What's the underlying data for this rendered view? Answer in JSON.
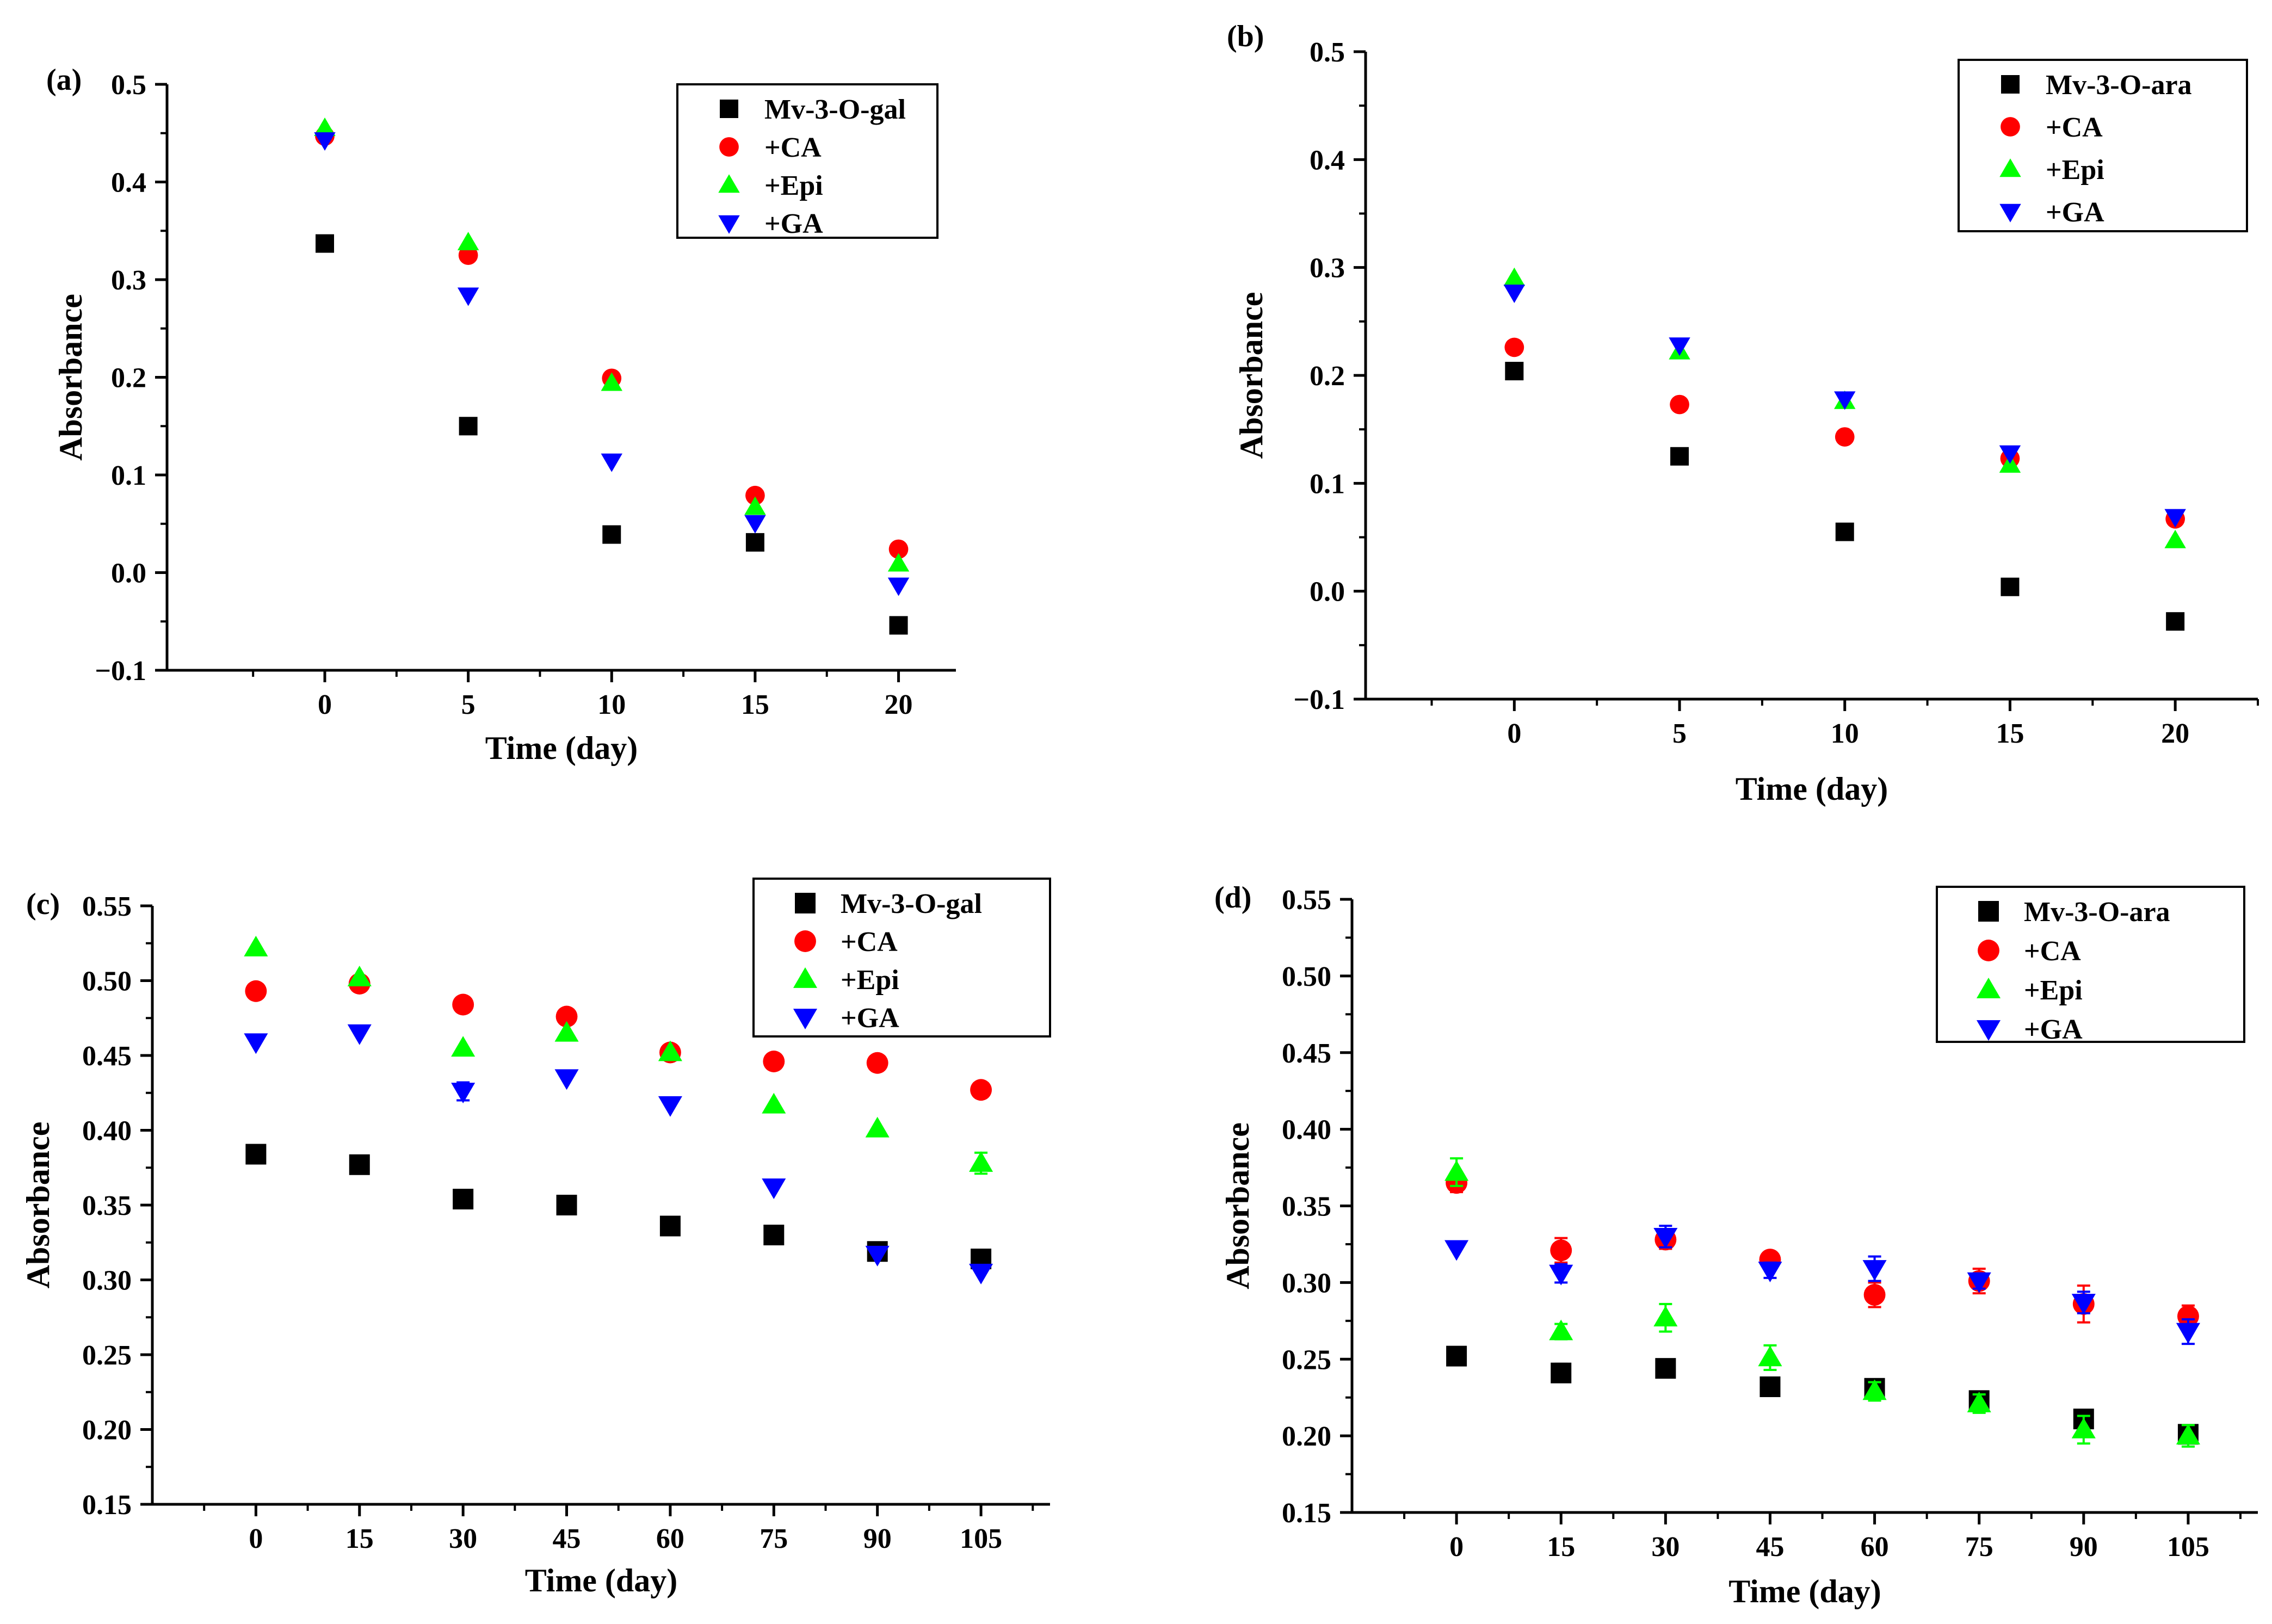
{
  "chart_data": [
    {
      "type": "scatter",
      "panel_label": "(a)",
      "xlabel": "Time (day)",
      "ylabel": "Absorbance",
      "xlim": [
        -5.5,
        22
      ],
      "ylim": [
        -0.1,
        0.5
      ],
      "xticks": [
        0,
        5,
        10,
        15,
        20
      ],
      "yticks": [
        -0.1,
        0.0,
        0.1,
        0.2,
        0.3,
        0.4,
        0.5
      ],
      "ytick_labels": [
        "−0.1",
        "0.0",
        "0.1",
        "0.2",
        "0.3",
        "0.4",
        "0.5"
      ],
      "legend_position": "top-right",
      "series": [
        {
          "name": "Mv-3-O-gal",
          "marker": "square",
          "color": "#000000",
          "x": [
            0,
            5,
            10,
            15,
            20
          ],
          "y": [
            0.337,
            0.15,
            0.039,
            0.031,
            -0.054
          ]
        },
        {
          "name": "+CA",
          "marker": "circle",
          "color": "#ff0000",
          "x": [
            0,
            5,
            10,
            15,
            20
          ],
          "y": [
            0.447,
            0.325,
            0.199,
            0.079,
            0.024
          ]
        },
        {
          "name": "+Epi",
          "marker": "triangle-up",
          "color": "#00ff00",
          "x": [
            0,
            5,
            10,
            15,
            20
          ],
          "y": [
            0.455,
            0.338,
            0.194,
            0.067,
            0.009
          ]
        },
        {
          "name": "+GA",
          "marker": "triangle-down",
          "color": "#0000ff",
          "x": [
            0,
            5,
            10,
            15,
            20
          ],
          "y": [
            0.443,
            0.284,
            0.114,
            0.051,
            -0.013
          ]
        }
      ]
    },
    {
      "type": "scatter",
      "panel_label": "(b)",
      "xlabel": "Time (day)",
      "ylabel": "Absorbance",
      "xlim": [
        -4.5,
        22.5
      ],
      "ylim": [
        -0.1,
        0.5
      ],
      "xticks": [
        0,
        5,
        10,
        15,
        20
      ],
      "yticks": [
        -0.1,
        0.0,
        0.1,
        0.2,
        0.3,
        0.4,
        0.5
      ],
      "ytick_labels": [
        "−0.1",
        "0.0",
        "0.1",
        "0.2",
        "0.3",
        "0.4",
        "0.5"
      ],
      "legend_position": "top-right",
      "series": [
        {
          "name": "Mv-3-O-ara",
          "marker": "square",
          "color": "#000000",
          "x": [
            0,
            5,
            10,
            15,
            20
          ],
          "y": [
            0.204,
            0.125,
            0.055,
            0.004,
            -0.028
          ]
        },
        {
          "name": "+CA",
          "marker": "circle",
          "color": "#ff0000",
          "x": [
            0,
            5,
            10,
            15,
            20
          ],
          "y": [
            0.226,
            0.173,
            0.143,
            0.123,
            0.067
          ]
        },
        {
          "name": "+Epi",
          "marker": "triangle-up",
          "color": "#00ff00",
          "x": [
            0,
            5,
            10,
            15,
            20
          ],
          "y": [
            0.29,
            0.222,
            0.176,
            0.117,
            0.047
          ]
        },
        {
          "name": "+GA",
          "marker": "triangle-down",
          "color": "#0000ff",
          "x": [
            0,
            5,
            10,
            15,
            20
          ],
          "y": [
            0.277,
            0.228,
            0.178,
            0.128,
            0.069
          ]
        }
      ]
    },
    {
      "type": "scatter",
      "panel_label": "(c)",
      "xlabel": "Time (day)",
      "ylabel": "Absorbance",
      "xlim": [
        -15,
        115
      ],
      "ylim": [
        0.15,
        0.55
      ],
      "xticks": [
        0,
        15,
        30,
        45,
        60,
        75,
        90,
        105
      ],
      "yticks": [
        0.15,
        0.2,
        0.25,
        0.3,
        0.35,
        0.4,
        0.45,
        0.5,
        0.55
      ],
      "ytick_labels": [
        "0.15",
        "0.20",
        "0.25",
        "0.30",
        "0.35",
        "0.40",
        "0.45",
        "0.50",
        "0.55"
      ],
      "legend_position": "top-right",
      "series": [
        {
          "name": "Mv-3-O-gal",
          "marker": "square",
          "color": "#000000",
          "x": [
            0,
            15,
            30,
            45,
            60,
            75,
            90,
            105
          ],
          "y": [
            0.384,
            0.377,
            0.354,
            0.35,
            0.336,
            0.33,
            0.319,
            0.314
          ]
        },
        {
          "name": "+CA",
          "marker": "circle",
          "color": "#ff0000",
          "x": [
            0,
            15,
            30,
            45,
            60,
            75,
            90,
            105
          ],
          "y": [
            0.493,
            0.498,
            0.484,
            0.476,
            0.452,
            0.446,
            0.445,
            0.427
          ]
        },
        {
          "name": "+Epi",
          "marker": "triangle-up",
          "color": "#00ff00",
          "x": [
            0,
            15,
            30,
            45,
            60,
            75,
            90,
            105
          ],
          "y": [
            0.522,
            0.502,
            0.455,
            0.465,
            0.452,
            0.417,
            0.401,
            0.378
          ],
          "yerr": [
            0,
            0,
            0,
            0,
            0,
            0,
            0,
            0.007
          ]
        },
        {
          "name": "+GA",
          "marker": "triangle-down",
          "color": "#0000ff",
          "x": [
            0,
            15,
            30,
            45,
            60,
            75,
            90,
            105
          ],
          "y": [
            0.459,
            0.465,
            0.426,
            0.435,
            0.417,
            0.362,
            0.317,
            0.305
          ],
          "yerr": [
            0,
            0,
            0.006,
            0,
            0,
            0,
            0,
            0
          ]
        }
      ]
    },
    {
      "type": "scatter",
      "panel_label": "(d)",
      "xlabel": "Time (day)",
      "ylabel": "Absorbance",
      "xlim": [
        -15,
        115
      ],
      "ylim": [
        0.15,
        0.55
      ],
      "xticks": [
        0,
        15,
        30,
        45,
        60,
        75,
        90,
        105
      ],
      "yticks": [
        0.15,
        0.2,
        0.25,
        0.3,
        0.35,
        0.4,
        0.45,
        0.5,
        0.55
      ],
      "ytick_labels": [
        "0.15",
        "0.20",
        "0.25",
        "0.30",
        "0.35",
        "0.40",
        "0.45",
        "0.50",
        "0.55"
      ],
      "legend_position": "top-right",
      "series": [
        {
          "name": "Mv-3-O-ara",
          "marker": "square",
          "color": "#000000",
          "x": [
            0,
            15,
            30,
            45,
            60,
            75,
            90,
            105
          ],
          "y": [
            0.252,
            0.241,
            0.244,
            0.232,
            0.231,
            0.223,
            0.211,
            0.201
          ],
          "yerr": [
            0,
            0.006,
            0.005,
            0,
            0.005,
            0.005,
            0.005,
            0.005
          ]
        },
        {
          "name": "+CA",
          "marker": "circle",
          "color": "#ff0000",
          "x": [
            0,
            15,
            30,
            45,
            60,
            75,
            90,
            105
          ],
          "y": [
            0.365,
            0.321,
            0.328,
            0.315,
            0.292,
            0.301,
            0.286,
            0.278
          ],
          "yerr": [
            0.006,
            0.008,
            0.006,
            0.004,
            0.008,
            0.008,
            0.012,
            0.007
          ]
        },
        {
          "name": "+Epi",
          "marker": "triangle-up",
          "color": "#00ff00",
          "x": [
            0,
            15,
            30,
            45,
            60,
            75,
            90,
            105
          ],
          "y": [
            0.372,
            0.268,
            0.277,
            0.251,
            0.229,
            0.221,
            0.204,
            0.2
          ],
          "yerr": [
            0.009,
            0.005,
            0.009,
            0.008,
            0.006,
            0.006,
            0.009,
            0.007
          ]
        },
        {
          "name": "+GA",
          "marker": "triangle-down",
          "color": "#0000ff",
          "x": [
            0,
            15,
            30,
            45,
            60,
            75,
            90,
            105
          ],
          "y": [
            0.322,
            0.306,
            0.33,
            0.308,
            0.309,
            0.301,
            0.287,
            0.268
          ],
          "yerr": [
            0,
            0.006,
            0.007,
            0.005,
            0.008,
            0.005,
            0.007,
            0.008
          ]
        }
      ]
    }
  ]
}
